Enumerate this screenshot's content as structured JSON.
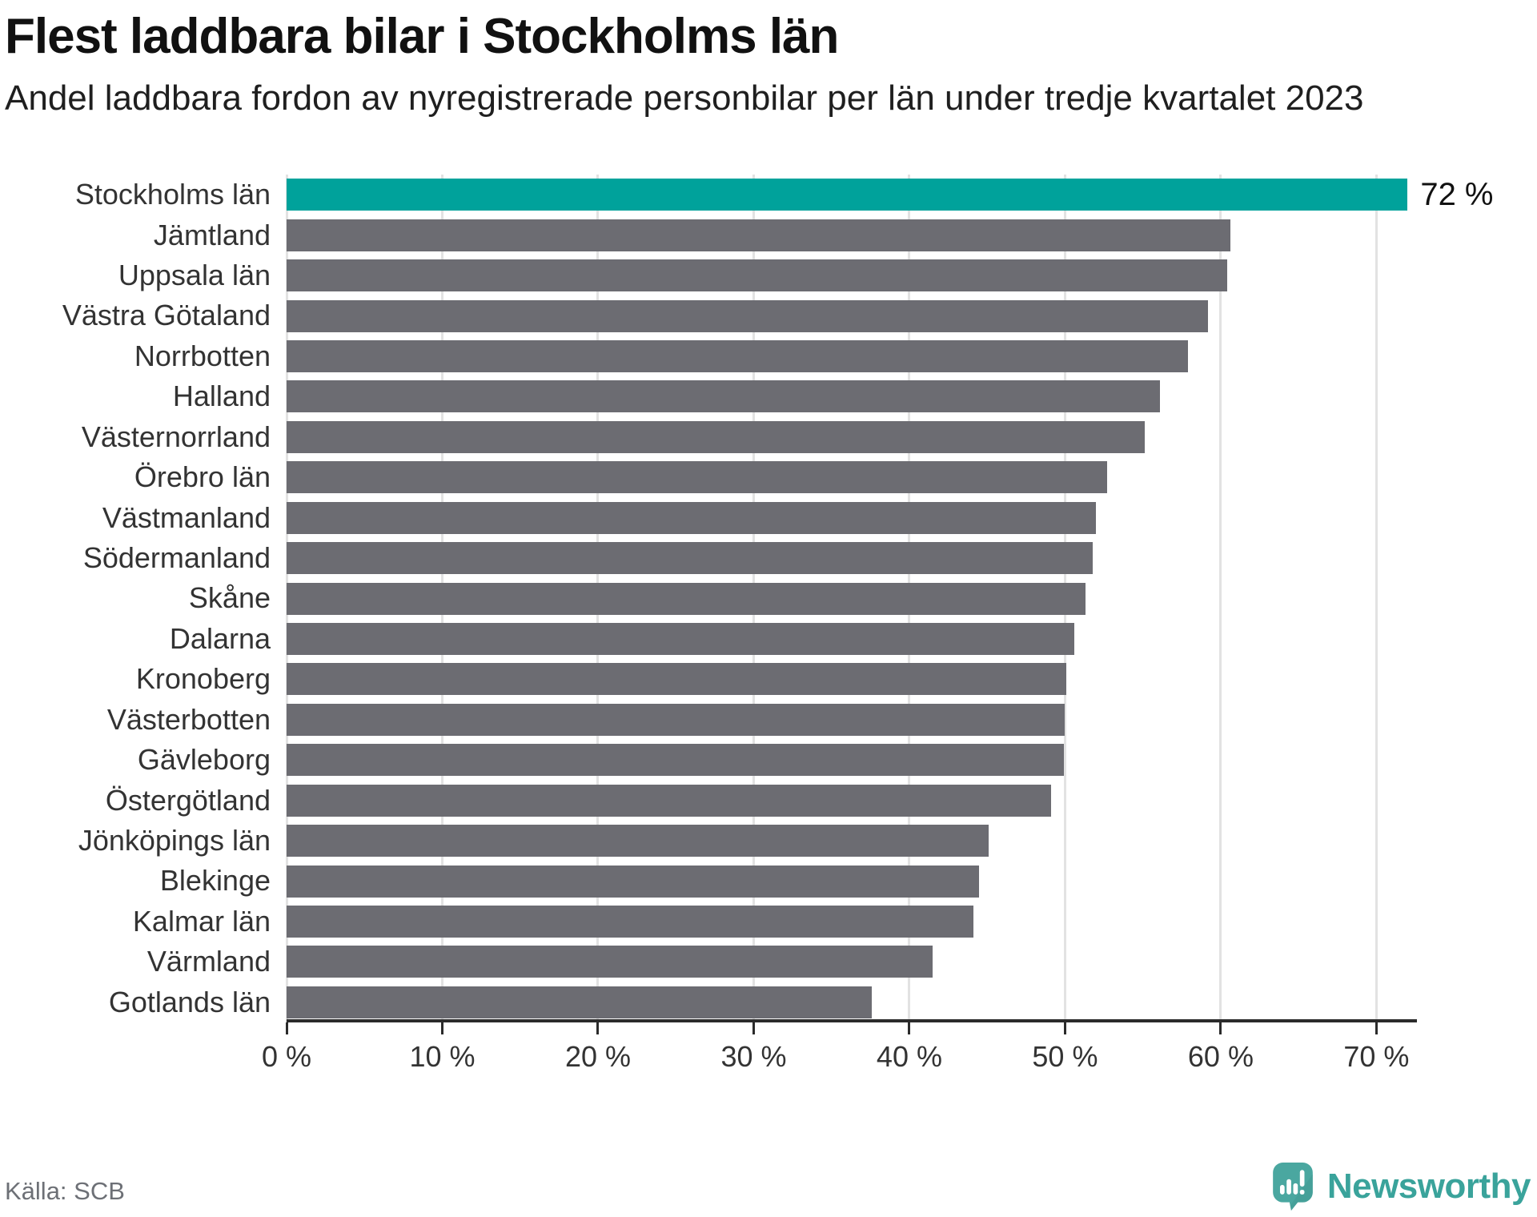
{
  "header": {
    "title": "Flest laddbara bilar i Stockholms län",
    "subtitle": "Andel laddbara fordon av nyregistrerade personbilar per län under tredje kvartalet 2023"
  },
  "chart_data": {
    "type": "bar",
    "orientation": "horizontal",
    "title": "Flest laddbara bilar i Stockholms län",
    "subtitle": "Andel laddbara fordon av nyregistrerade personbilar per län under tredje kvartalet 2023",
    "xlabel": "",
    "ylabel": "",
    "unit": "%",
    "categories": [
      "Stockholms län",
      "Jämtland",
      "Uppsala län",
      "Västra Götaland",
      "Norrbotten",
      "Halland",
      "Västernorrland",
      "Örebro län",
      "Västmanland",
      "Södermanland",
      "Skåne",
      "Dalarna",
      "Kronoberg",
      "Västerbotten",
      "Gävleborg",
      "Östergötland",
      "Jönköpings län",
      "Blekinge",
      "Kalmar län",
      "Värmland",
      "Gotlands län"
    ],
    "values": [
      72,
      60.6,
      60.4,
      59.2,
      57.9,
      56.1,
      55.1,
      52.7,
      52.0,
      51.8,
      51.3,
      50.6,
      50.1,
      50.0,
      49.9,
      49.1,
      45.1,
      44.5,
      44.1,
      41.5,
      37.6
    ],
    "highlight_index": 0,
    "highlight_color": "#00a29b",
    "bar_color": "#6c6c72",
    "value_label": "72 %",
    "x_tick_values": [
      0,
      10,
      20,
      30,
      40,
      50,
      60,
      70
    ],
    "x_tick_labels": [
      "0 %",
      "10 %",
      "20 %",
      "30 %",
      "40 %",
      "50 %",
      "60 %",
      "70 %"
    ],
    "xlim": [
      0,
      72.6
    ],
    "grid": true,
    "legend": false
  },
  "footer": {
    "source": "Källa: SCB",
    "brand": "Newsworthy",
    "brand_color": "#3aa39b",
    "logo_color": "#4aa7a0"
  }
}
